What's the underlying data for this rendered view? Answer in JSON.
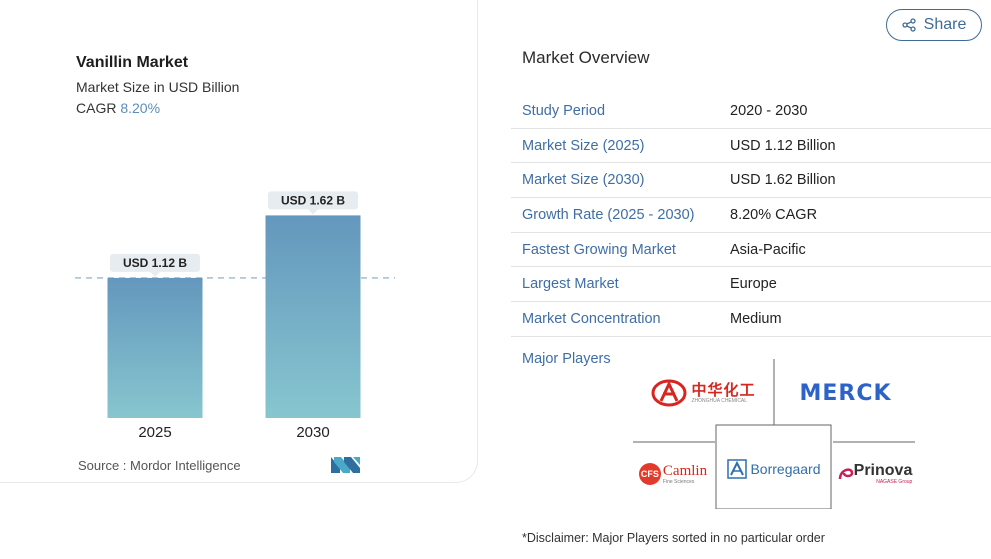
{
  "chart_data": {
    "type": "bar",
    "title": "Vanillin Market",
    "subtitle": "Market Size in USD Billion",
    "cagr_label": "CAGR",
    "cagr_value": "8.20%",
    "categories": [
      "2025",
      "2030"
    ],
    "values": [
      1.12,
      1.62
    ],
    "data_labels": [
      "USD 1.12 B",
      "USD 1.62 B"
    ],
    "ylim": [
      0,
      1.8
    ],
    "reference_line": 1.12,
    "grid": false,
    "colors": {
      "bar_top": "#6497bd",
      "bar_bottom": "#87c6cf",
      "label_bg": "#e6ecef",
      "ref_line": "#7fa8c6"
    }
  },
  "source": {
    "label": "Source :",
    "name": "Mordor Intelligence"
  },
  "share": {
    "label": "Share",
    "icon": "share-icon"
  },
  "overview": {
    "title": "Market Overview",
    "rows": [
      {
        "label": "Study Period",
        "value": "2020 - 2030"
      },
      {
        "label": "Market Size (2025)",
        "value": "USD 1.12 Billion"
      },
      {
        "label": "Market Size (2030)",
        "value": "USD 1.62 Billion"
      },
      {
        "label": "Growth Rate (2025 - 2030)",
        "value": "8.20% CAGR"
      },
      {
        "label": "Fastest Growing Market",
        "value": "Asia-Pacific"
      },
      {
        "label": "Largest Market",
        "value": "Europe"
      },
      {
        "label": "Market Concentration",
        "value": "Medium"
      }
    ],
    "major_players_label": "Major Players"
  },
  "players": {
    "zhonghua": {
      "name": "中华化工",
      "sub": "ZHONGHUA CHEMICAL"
    },
    "merck": {
      "name": "MERCK"
    },
    "camlin": {
      "mark": "CFS",
      "name": "Camlin",
      "sub": "Fine Sciences"
    },
    "borregaard": {
      "name": "Borregaard"
    },
    "prinova": {
      "name": "Prinova",
      "sub": "NAGASE Group"
    }
  },
  "disclaimer": "*Disclaimer: Major Players sorted in no particular order"
}
